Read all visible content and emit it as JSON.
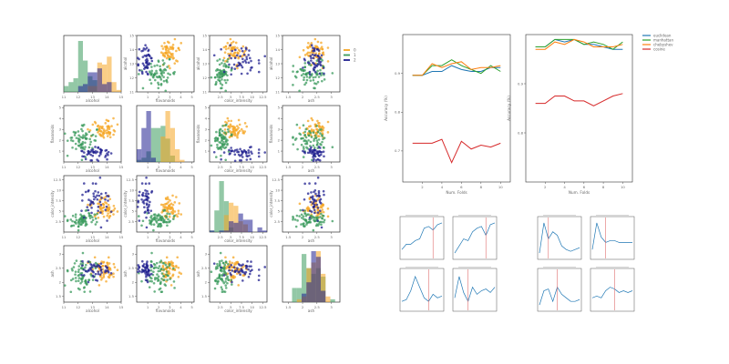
{
  "chart_data": [
    {
      "type": "scatter",
      "panel": "pairplot",
      "variables": [
        "alcohol",
        "flavanoids",
        "color_intensity",
        "ash"
      ],
      "diagonal": "histogram",
      "grid": false,
      "legend": {
        "position": "right",
        "entries": [
          "0",
          "1",
          "2"
        ]
      },
      "series": [
        {
          "name": "0",
          "color": "#f5a623",
          "center": {
            "alcohol": 13.7,
            "flavanoids": 2.95,
            "color_intensity": 5.6,
            "ash": 2.45
          },
          "spread": {
            "alcohol": 0.45,
            "flavanoids": 0.4,
            "color_intensity": 1.2,
            "ash": 0.22
          },
          "count": 59
        },
        {
          "name": "1",
          "color": "#3a9a5c",
          "center": {
            "alcohol": 12.3,
            "flavanoids": 2.1,
            "color_intensity": 3.1,
            "ash": 2.25
          },
          "spread": {
            "alcohol": 0.5,
            "flavanoids": 0.7,
            "color_intensity": 0.9,
            "ash": 0.3
          },
          "count": 71
        },
        {
          "name": "2",
          "color": "#1f1f8f",
          "center": {
            "alcohol": 13.15,
            "flavanoids": 0.78,
            "color_intensity": 7.4,
            "ash": 2.44
          },
          "spread": {
            "alcohol": 0.5,
            "flavanoids": 0.3,
            "color_intensity": 2.3,
            "ash": 0.18
          },
          "count": 48
        }
      ],
      "axes": {
        "alcohol": {
          "label": "alcohol",
          "range": [
            11,
            15
          ],
          "ticks": [
            11,
            12,
            13,
            14,
            15
          ]
        },
        "flavanoids": {
          "label": "flavanoids",
          "range": [
            0,
            5.2
          ],
          "ticks": [
            1,
            2,
            3,
            4,
            5
          ]
        },
        "color_intensity": {
          "label": "color_intensity",
          "range": [
            0,
            13.5
          ],
          "ticks": [
            2.5,
            5.0,
            7.5,
            10.0,
            12.5
          ]
        },
        "ash": {
          "label": "ash",
          "range": [
            1.3,
            3.3
          ],
          "ticks": [
            1.5,
            2.0,
            2.5,
            3.0
          ]
        }
      }
    },
    {
      "type": "line",
      "panel": "accuracy-vs-k",
      "xlabel": "Num. Folds",
      "ylabel": "Accuracy (%)",
      "xlim": [
        0,
        11
      ],
      "ylim": [
        0.62,
        1.0
      ],
      "x": [
        1,
        2,
        3,
        4,
        5,
        6,
        7,
        8,
        9,
        10
      ],
      "yticks": [
        0.7,
        0.8,
        0.9
      ],
      "series": [
        {
          "name": "euclidean",
          "color": "#1f77b4",
          "values": [
            0.895,
            0.895,
            0.905,
            0.905,
            0.92,
            0.91,
            0.905,
            0.905,
            0.915,
            0.915
          ]
        },
        {
          "name": "manhattan",
          "color": "#2ca02c",
          "values": [
            0.895,
            0.895,
            0.92,
            0.92,
            0.935,
            0.92,
            0.91,
            0.9,
            0.92,
            0.905
          ]
        },
        {
          "name": "chebyshev",
          "color": "#ff7f0e",
          "values": [
            0.895,
            0.895,
            0.925,
            0.915,
            0.925,
            0.93,
            0.91,
            0.915,
            0.915,
            0.92
          ]
        },
        {
          "name": "cosine",
          "color": "#d62728",
          "values": [
            0.72,
            0.72,
            0.72,
            0.73,
            0.67,
            0.725,
            0.705,
            0.715,
            0.71,
            0.72
          ]
        }
      ]
    },
    {
      "type": "line",
      "panel": "accuracy-vs-k",
      "xlabel": "Num. Folds",
      "ylabel": "Accuracy (%)",
      "xlim": [
        0,
        11
      ],
      "ylim": [
        0.7,
        1.0
      ],
      "x": [
        1,
        2,
        3,
        4,
        5,
        6,
        7,
        8,
        9,
        10
      ],
      "yticks": [
        0.8,
        0.9
      ],
      "legend": {
        "position": "top-right",
        "entries": [
          "euclidean",
          "manhattan",
          "chebyshev",
          "cosine"
        ]
      },
      "series": [
        {
          "name": "euclidean",
          "color": "#1f77b4",
          "values": [
            0.975,
            0.975,
            0.99,
            0.985,
            0.99,
            0.98,
            0.98,
            0.975,
            0.97,
            0.97
          ]
        },
        {
          "name": "manhattan",
          "color": "#2ca02c",
          "values": [
            0.975,
            0.975,
            0.99,
            0.99,
            0.99,
            0.98,
            0.985,
            0.98,
            0.97,
            0.985
          ]
        },
        {
          "name": "chebyshev",
          "color": "#ff7f0e",
          "values": [
            0.97,
            0.97,
            0.985,
            0.98,
            0.99,
            0.985,
            0.975,
            0.975,
            0.975,
            0.98
          ]
        },
        {
          "name": "cosine",
          "color": "#d62728",
          "values": [
            0.86,
            0.86,
            0.875,
            0.875,
            0.865,
            0.865,
            0.855,
            0.865,
            0.875,
            0.88
          ]
        }
      ]
    },
    {
      "type": "line",
      "panel": "small-multiples",
      "groups": [
        {
          "panels": [
            {
              "color": "#1f77b4",
              "values": [
                0.2,
                0.35,
                0.35,
                0.45,
                0.5,
                0.8,
                0.85,
                0.75,
                0.9,
                0.95
              ],
              "marker_index": 7
            },
            {
              "color": "#1f77b4",
              "values": [
                0.1,
                0.3,
                0.5,
                0.45,
                0.7,
                0.8,
                0.85,
                0.6,
                0.9,
                0.95
              ],
              "marker_index": 7
            },
            {
              "color": "#1f77b4",
              "values": [
                0.2,
                0.25,
                0.5,
                0.9,
                0.6,
                0.3,
                0.2,
                0.4,
                0.3,
                0.35
              ],
              "marker_index": 6
            },
            {
              "color": "#1f77b4",
              "values": [
                0.3,
                0.9,
                0.45,
                0.2,
                0.6,
                0.4,
                0.5,
                0.55,
                0.45,
                0.6
              ],
              "marker_index": 3
            }
          ]
        },
        {
          "panels": [
            {
              "color": "#1f77b4",
              "values": [
                0.1,
                0.95,
                0.5,
                0.7,
                0.6,
                0.3,
                0.2,
                0.15,
                0.2,
                0.25
              ],
              "marker_index": 2
            },
            {
              "color": "#1f77b4",
              "values": [
                0.2,
                0.95,
                0.55,
                0.4,
                0.45,
                0.45,
                0.4,
                0.4,
                0.4,
                0.4
              ],
              "marker_index": 3
            },
            {
              "color": "#1f77b4",
              "values": [
                0.1,
                0.5,
                0.55,
                0.2,
                0.6,
                0.4,
                0.3,
                0.2,
                0.2,
                0.25
              ],
              "marker_index": 4
            },
            {
              "color": "#1f77b4",
              "values": [
                0.3,
                0.35,
                0.3,
                0.5,
                0.6,
                0.55,
                0.45,
                0.5,
                0.45,
                0.5
              ],
              "marker_index": 5
            }
          ]
        }
      ]
    }
  ]
}
